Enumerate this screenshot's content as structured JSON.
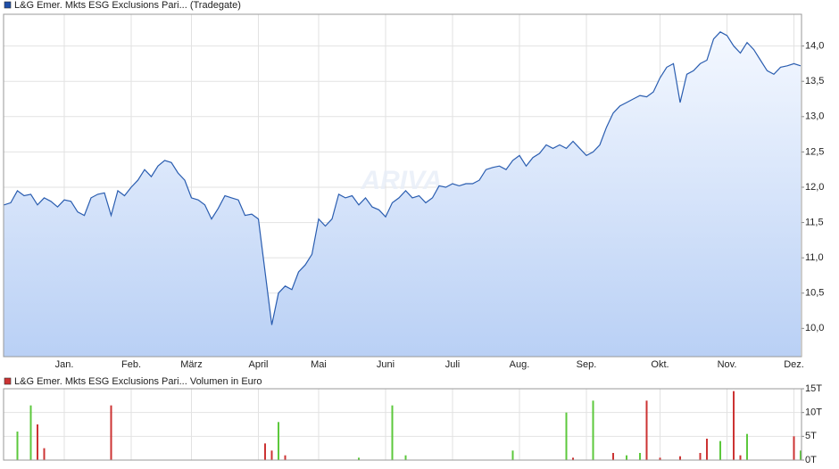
{
  "chart_data": [
    {
      "type": "line",
      "title": "L&G Emer. Mkts ESG Exclusions Pari... (Tradegate)",
      "watermark": "ARIVA",
      "color": "#2a5db0",
      "legend_color": "#1f4fa8",
      "grid": true,
      "categories": [
        null,
        null,
        null,
        null,
        null,
        null,
        null,
        null,
        null,
        "Jan.",
        null,
        null,
        null,
        null,
        null,
        null,
        null,
        null,
        null,
        "Feb.",
        null,
        null,
        null,
        null,
        null,
        null,
        null,
        null,
        "März",
        null,
        null,
        null,
        null,
        null,
        null,
        null,
        null,
        null,
        "April",
        null,
        null,
        null,
        null,
        null,
        null,
        null,
        null,
        "Mai",
        null,
        null,
        null,
        null,
        null,
        null,
        null,
        null,
        null,
        "Juni",
        null,
        null,
        null,
        null,
        null,
        null,
        null,
        null,
        null,
        "Juli",
        null,
        null,
        null,
        null,
        null,
        null,
        null,
        null,
        null,
        "Aug.",
        null,
        null,
        null,
        null,
        null,
        null,
        null,
        null,
        null,
        "Sep.",
        null,
        null,
        null,
        null,
        null,
        null,
        null,
        null,
        null,
        null,
        "Okt.",
        null,
        null,
        null,
        null,
        null,
        null,
        null,
        null,
        null,
        "Nov.",
        null,
        null,
        null,
        null,
        null,
        null,
        null,
        null,
        null,
        "Dez.",
        null
      ],
      "values": [
        11.75,
        11.78,
        11.95,
        11.88,
        11.9,
        11.75,
        11.85,
        11.8,
        11.72,
        11.82,
        11.8,
        11.65,
        11.6,
        11.85,
        11.9,
        11.92,
        11.6,
        11.95,
        11.88,
        12.0,
        12.1,
        12.25,
        12.15,
        12.3,
        12.38,
        12.35,
        12.2,
        12.1,
        11.85,
        11.82,
        11.75,
        11.55,
        11.7,
        11.88,
        11.85,
        11.82,
        11.6,
        11.62,
        11.55,
        10.8,
        10.05,
        10.5,
        10.6,
        10.55,
        10.8,
        10.9,
        11.05,
        11.55,
        11.45,
        11.55,
        11.9,
        11.85,
        11.88,
        11.75,
        11.85,
        11.72,
        11.68,
        11.58,
        11.78,
        11.85,
        11.95,
        11.85,
        11.88,
        11.78,
        11.85,
        12.02,
        12.0,
        12.05,
        12.02,
        12.05,
        12.05,
        12.1,
        12.25,
        12.28,
        12.3,
        12.25,
        12.38,
        12.45,
        12.3,
        12.42,
        12.48,
        12.6,
        12.55,
        12.6,
        12.55,
        12.65,
        12.55,
        12.45,
        12.5,
        12.6,
        12.85,
        13.05,
        13.15,
        13.2,
        13.25,
        13.3,
        13.28,
        13.35,
        13.55,
        13.7,
        13.75,
        13.2,
        13.6,
        13.65,
        13.75,
        13.8,
        14.1,
        14.2,
        14.15,
        14.0,
        13.9,
        14.05,
        13.95,
        13.8,
        13.65,
        13.6,
        13.7,
        13.72,
        13.75,
        13.72
      ],
      "ylim": [
        9.6,
        14.45
      ],
      "yticks": [
        {
          "value": 10,
          "label": "10,0"
        },
        {
          "value": 10.5,
          "label": "10,5"
        },
        {
          "value": 11,
          "label": "11,0"
        },
        {
          "value": 11.5,
          "label": "11,5"
        },
        {
          "value": 12,
          "label": "12,0"
        },
        {
          "value": 12.5,
          "label": "12,5"
        },
        {
          "value": 13,
          "label": "13,0"
        },
        {
          "value": 13.5,
          "label": "13,5"
        },
        {
          "value": 14,
          "label": "14,0"
        }
      ]
    },
    {
      "type": "bar",
      "title": "L&G Emer. Mkts ESG Exclusions Pari... Volumen in Euro",
      "legend_color": "#cc3333",
      "grid": true,
      "series": [
        {
          "color": "#5cc83c",
          "values": [
            null,
            null,
            6000,
            null,
            11500,
            null,
            null,
            null,
            null,
            null,
            null,
            null,
            null,
            null,
            null,
            null,
            null,
            null,
            null,
            null,
            null,
            null,
            null,
            null,
            null,
            null,
            null,
            null,
            null,
            null,
            null,
            null,
            null,
            null,
            null,
            null,
            null,
            null,
            null,
            null,
            null,
            8000,
            null,
            null,
            null,
            null,
            null,
            null,
            null,
            null,
            null,
            null,
            null,
            500,
            null,
            null,
            null,
            null,
            11500,
            null,
            1000,
            null,
            null,
            null,
            null,
            null,
            null,
            null,
            null,
            null,
            null,
            null,
            null,
            null,
            null,
            null,
            2000,
            null,
            null,
            null,
            null,
            null,
            null,
            null,
            10000,
            null,
            null,
            null,
            12500,
            null,
            null,
            null,
            null,
            1000,
            null,
            1500,
            null,
            null,
            null,
            null,
            null,
            null,
            null,
            null,
            null,
            null,
            null,
            4000,
            null,
            null,
            null,
            5500,
            null,
            null,
            null,
            null,
            null,
            null,
            null,
            2000
          ]
        },
        {
          "color": "#cc3333",
          "values": [
            null,
            null,
            null,
            null,
            null,
            7500,
            2500,
            null,
            null,
            null,
            null,
            null,
            null,
            null,
            null,
            null,
            11500,
            null,
            null,
            null,
            null,
            null,
            null,
            null,
            null,
            null,
            null,
            null,
            null,
            null,
            null,
            null,
            null,
            null,
            null,
            null,
            null,
            null,
            null,
            3500,
            2000,
            null,
            1000,
            null,
            null,
            null,
            null,
            null,
            null,
            null,
            null,
            null,
            null,
            null,
            null,
            null,
            null,
            null,
            null,
            null,
            null,
            null,
            null,
            null,
            null,
            null,
            null,
            null,
            null,
            null,
            null,
            null,
            null,
            null,
            null,
            null,
            null,
            null,
            null,
            null,
            null,
            null,
            null,
            null,
            null,
            500,
            null,
            null,
            null,
            null,
            null,
            1500,
            null,
            null,
            null,
            null,
            12500,
            null,
            500,
            null,
            null,
            800,
            null,
            null,
            1500,
            4500,
            null,
            null,
            null,
            14500,
            1000,
            null,
            null,
            null,
            null,
            null,
            null,
            null,
            5000,
            null
          ]
        }
      ],
      "ylim": [
        0,
        15000
      ],
      "yticks": [
        {
          "value": 0,
          "label": "0T"
        },
        {
          "value": 5000,
          "label": "5T"
        },
        {
          "value": 10000,
          "label": "10T"
        },
        {
          "value": 15000,
          "label": "15T"
        }
      ]
    }
  ]
}
